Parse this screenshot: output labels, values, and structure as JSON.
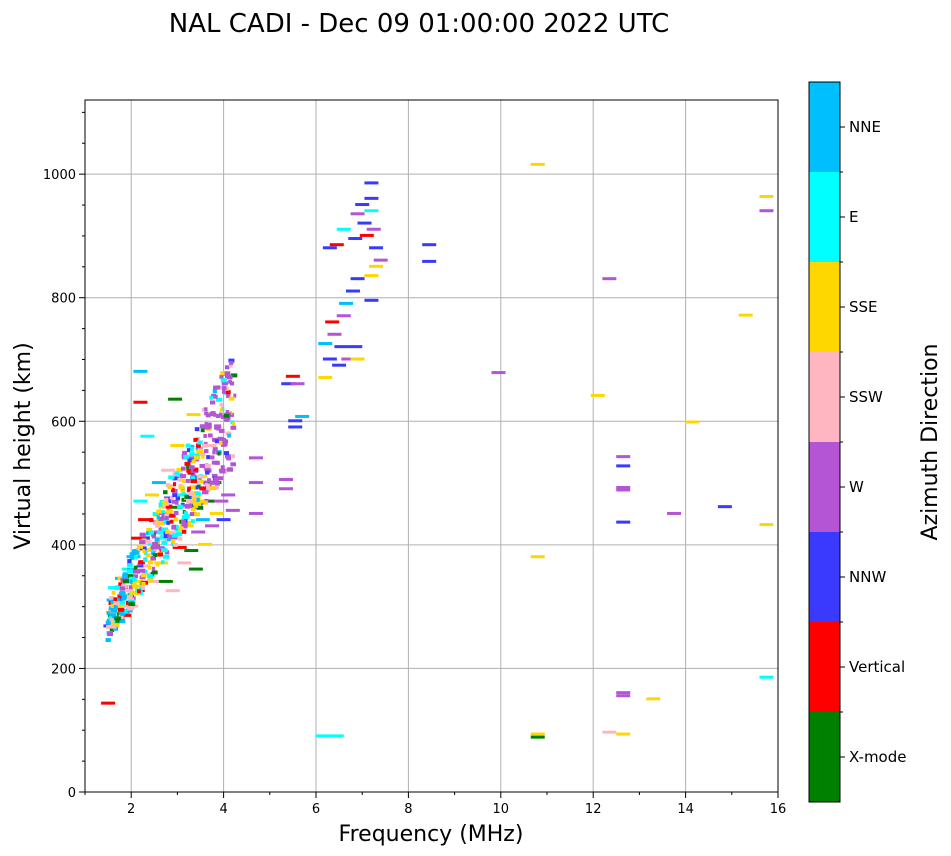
{
  "chart_data": {
    "type": "scatter",
    "title": "NAL CADI - Dec 09 01:00:00 2022 UTC",
    "xlabel": "Frequency (MHz)",
    "ylabel": "Virtual height (km)",
    "xlim": [
      1,
      16
    ],
    "ylim": [
      0,
      1120
    ],
    "xticks": [
      2,
      4,
      6,
      8,
      10,
      12,
      14,
      16
    ],
    "yticks": [
      0,
      200,
      400,
      600,
      800,
      1000
    ],
    "grid": true,
    "colorbar": {
      "label": "Azimuth Direction",
      "categories": [
        {
          "name": "X-mode",
          "color": "#008000"
        },
        {
          "name": "Vertical",
          "color": "#ff0000"
        },
        {
          "name": "NNW",
          "color": "#3a3aff"
        },
        {
          "name": "W",
          "color": "#b455d6"
        },
        {
          "name": "SSW",
          "color": "#ffb6c1"
        },
        {
          "name": "SSE",
          "color": "#ffd700"
        },
        {
          "name": "E",
          "color": "#00ffff"
        },
        {
          "name": "NNE",
          "color": "#00bfff"
        }
      ]
    },
    "cluster_note": "dense echo band from ~1.5 MHz/265 km rising to ~4.2 MHz/580 km",
    "points": [
      {
        "f": 1.5,
        "h": 143,
        "c": "Vertical"
      },
      {
        "f": 1.55,
        "h": 268,
        "c": "NNW"
      },
      {
        "f": 1.6,
        "h": 290,
        "c": "SSE"
      },
      {
        "f": 1.62,
        "h": 310,
        "c": "NNE"
      },
      {
        "f": 1.65,
        "h": 330,
        "c": "E"
      },
      {
        "f": 1.7,
        "h": 280,
        "c": "Vertical"
      },
      {
        "f": 1.75,
        "h": 300,
        "c": "SSE"
      },
      {
        "f": 1.8,
        "h": 345,
        "c": "NNE"
      },
      {
        "f": 1.85,
        "h": 285,
        "c": "Vertical"
      },
      {
        "f": 1.9,
        "h": 325,
        "c": "SSW"
      },
      {
        "f": 1.95,
        "h": 360,
        "c": "E"
      },
      {
        "f": 2.0,
        "h": 300,
        "c": "SSW"
      },
      {
        "f": 2.05,
        "h": 380,
        "c": "NNE"
      },
      {
        "f": 2.1,
        "h": 340,
        "c": "SSE"
      },
      {
        "f": 2.15,
        "h": 410,
        "c": "Vertical"
      },
      {
        "f": 2.2,
        "h": 470,
        "c": "E"
      },
      {
        "f": 2.25,
        "h": 365,
        "c": "SSW"
      },
      {
        "f": 2.3,
        "h": 440,
        "c": "Vertical"
      },
      {
        "f": 2.35,
        "h": 575,
        "c": "E"
      },
      {
        "f": 2.4,
        "h": 390,
        "c": "SSW"
      },
      {
        "f": 2.45,
        "h": 480,
        "c": "SSE"
      },
      {
        "f": 2.5,
        "h": 340,
        "c": "SSW"
      },
      {
        "f": 2.55,
        "h": 420,
        "c": "W"
      },
      {
        "f": 2.6,
        "h": 500,
        "c": "NNE"
      },
      {
        "f": 2.65,
        "h": 370,
        "c": "SSE"
      },
      {
        "f": 2.7,
        "h": 450,
        "c": "NNE"
      },
      {
        "f": 2.75,
        "h": 340,
        "c": "X-mode"
      },
      {
        "f": 2.8,
        "h": 520,
        "c": "SSW"
      },
      {
        "f": 2.85,
        "h": 410,
        "c": "W"
      },
      {
        "f": 2.9,
        "h": 325,
        "c": "SSW"
      },
      {
        "f": 2.95,
        "h": 460,
        "c": "X-mode"
      },
      {
        "f": 3.0,
        "h": 560,
        "c": "SSE"
      },
      {
        "f": 3.05,
        "h": 395,
        "c": "Vertical"
      },
      {
        "f": 3.1,
        "h": 480,
        "c": "E"
      },
      {
        "f": 3.15,
        "h": 370,
        "c": "SSW"
      },
      {
        "f": 3.2,
        "h": 430,
        "c": "SSE"
      },
      {
        "f": 3.25,
        "h": 540,
        "c": "W"
      },
      {
        "f": 3.3,
        "h": 390,
        "c": "X-mode"
      },
      {
        "f": 3.35,
        "h": 470,
        "c": "SSE"
      },
      {
        "f": 3.4,
        "h": 360,
        "c": "X-mode"
      },
      {
        "f": 3.45,
        "h": 420,
        "c": "W"
      },
      {
        "f": 3.5,
        "h": 510,
        "c": "SSE"
      },
      {
        "f": 3.55,
        "h": 440,
        "c": "NNE"
      },
      {
        "f": 3.6,
        "h": 400,
        "c": "SSE"
      },
      {
        "f": 3.65,
        "h": 470,
        "c": "X-mode"
      },
      {
        "f": 3.7,
        "h": 560,
        "c": "SSW"
      },
      {
        "f": 3.75,
        "h": 430,
        "c": "W"
      },
      {
        "f": 3.8,
        "h": 500,
        "c": "X-mode"
      },
      {
        "f": 3.85,
        "h": 450,
        "c": "SSE"
      },
      {
        "f": 3.9,
        "h": 570,
        "c": "W"
      },
      {
        "f": 3.95,
        "h": 470,
        "c": "W"
      },
      {
        "f": 4.0,
        "h": 440,
        "c": "NNW"
      },
      {
        "f": 4.05,
        "h": 520,
        "c": "W"
      },
      {
        "f": 4.1,
        "h": 480,
        "c": "W"
      },
      {
        "f": 4.2,
        "h": 455,
        "c": "W"
      },
      {
        "f": 2.2,
        "h": 630,
        "c": "Vertical"
      },
      {
        "f": 2.2,
        "h": 680,
        "c": "NNE"
      },
      {
        "f": 2.95,
        "h": 635,
        "c": "X-mode"
      },
      {
        "f": 3.35,
        "h": 610,
        "c": "SSE"
      },
      {
        "f": 4.7,
        "h": 540,
        "c": "W"
      },
      {
        "f": 4.7,
        "h": 500,
        "c": "W"
      },
      {
        "f": 4.7,
        "h": 450,
        "c": "W"
      },
      {
        "f": 5.35,
        "h": 505,
        "c": "W"
      },
      {
        "f": 5.35,
        "h": 490,
        "c": "W"
      },
      {
        "f": 5.4,
        "h": 660,
        "c": "NNW"
      },
      {
        "f": 5.5,
        "h": 672,
        "c": "Vertical"
      },
      {
        "f": 5.55,
        "h": 600,
        "c": "NNW"
      },
      {
        "f": 5.55,
        "h": 590,
        "c": "NNW"
      },
      {
        "f": 5.6,
        "h": 660,
        "c": "W"
      },
      {
        "f": 5.7,
        "h": 607,
        "c": "NNE"
      },
      {
        "f": 6.2,
        "h": 725,
        "c": "NNE"
      },
      {
        "f": 6.2,
        "h": 670,
        "c": "SSE"
      },
      {
        "f": 6.3,
        "h": 700,
        "c": "NNW"
      },
      {
        "f": 6.35,
        "h": 760,
        "c": "Vertical"
      },
      {
        "f": 6.4,
        "h": 740,
        "c": "W"
      },
      {
        "f": 6.5,
        "h": 690,
        "c": "NNW"
      },
      {
        "f": 6.55,
        "h": 720,
        "c": "NNW"
      },
      {
        "f": 6.6,
        "h": 770,
        "c": "W"
      },
      {
        "f": 6.65,
        "h": 790,
        "c": "NNE"
      },
      {
        "f": 6.7,
        "h": 700,
        "c": "W"
      },
      {
        "f": 6.8,
        "h": 810,
        "c": "NNW"
      },
      {
        "f": 6.85,
        "h": 720,
        "c": "NNW"
      },
      {
        "f": 6.9,
        "h": 700,
        "c": "SSE"
      },
      {
        "f": 6.3,
        "h": 880,
        "c": "NNW"
      },
      {
        "f": 6.45,
        "h": 885,
        "c": "Vertical"
      },
      {
        "f": 6.6,
        "h": 910,
        "c": "E"
      },
      {
        "f": 6.85,
        "h": 895,
        "c": "NNW"
      },
      {
        "f": 6.9,
        "h": 935,
        "c": "W"
      },
      {
        "f": 7.0,
        "h": 950,
        "c": "NNW"
      },
      {
        "f": 7.05,
        "h": 920,
        "c": "NNW"
      },
      {
        "f": 7.1,
        "h": 900,
        "c": "Vertical"
      },
      {
        "f": 7.2,
        "h": 985,
        "c": "NNW"
      },
      {
        "f": 7.2,
        "h": 960,
        "c": "NNW"
      },
      {
        "f": 7.2,
        "h": 940,
        "c": "E"
      },
      {
        "f": 7.25,
        "h": 910,
        "c": "W"
      },
      {
        "f": 7.3,
        "h": 880,
        "c": "NNW"
      },
      {
        "f": 7.2,
        "h": 835,
        "c": "SSE"
      },
      {
        "f": 7.3,
        "h": 850,
        "c": "SSE"
      },
      {
        "f": 7.4,
        "h": 860,
        "c": "W"
      },
      {
        "f": 7.2,
        "h": 795,
        "c": "NNW"
      },
      {
        "f": 6.9,
        "h": 830,
        "c": "NNW"
      },
      {
        "f": 8.45,
        "h": 885,
        "c": "NNW"
      },
      {
        "f": 8.45,
        "h": 858,
        "c": "NNW"
      },
      {
        "f": 6.15,
        "h": 90,
        "c": "E"
      },
      {
        "f": 6.45,
        "h": 90,
        "c": "E"
      },
      {
        "f": 9.95,
        "h": 678,
        "c": "W"
      },
      {
        "f": 10.8,
        "h": 1015,
        "c": "SSE"
      },
      {
        "f": 10.8,
        "h": 380,
        "c": "SSE"
      },
      {
        "f": 10.8,
        "h": 93,
        "c": "SSE"
      },
      {
        "f": 10.8,
        "h": 88,
        "c": "X-mode"
      },
      {
        "f": 12.35,
        "h": 830,
        "c": "W"
      },
      {
        "f": 12.1,
        "h": 641,
        "c": "SSE"
      },
      {
        "f": 12.35,
        "h": 96,
        "c": "SSW"
      },
      {
        "f": 12.65,
        "h": 542,
        "c": "W"
      },
      {
        "f": 12.65,
        "h": 527,
        "c": "NNW"
      },
      {
        "f": 12.65,
        "h": 492,
        "c": "W"
      },
      {
        "f": 12.65,
        "h": 488,
        "c": "W"
      },
      {
        "f": 12.65,
        "h": 436,
        "c": "NNW"
      },
      {
        "f": 12.65,
        "h": 160,
        "c": "W"
      },
      {
        "f": 12.65,
        "h": 155,
        "c": "W"
      },
      {
        "f": 12.65,
        "h": 93,
        "c": "SSE"
      },
      {
        "f": 13.3,
        "h": 150,
        "c": "SSE"
      },
      {
        "f": 13.75,
        "h": 450,
        "c": "W"
      },
      {
        "f": 14.15,
        "h": 598,
        "c": "SSE"
      },
      {
        "f": 14.85,
        "h": 461,
        "c": "NNW"
      },
      {
        "f": 15.3,
        "h": 771,
        "c": "SSE"
      },
      {
        "f": 15.75,
        "h": 963,
        "c": "SSE"
      },
      {
        "f": 15.75,
        "h": 940,
        "c": "W"
      },
      {
        "f": 15.75,
        "h": 432,
        "c": "SSE"
      },
      {
        "f": 15.75,
        "h": 185,
        "c": "E"
      }
    ]
  }
}
